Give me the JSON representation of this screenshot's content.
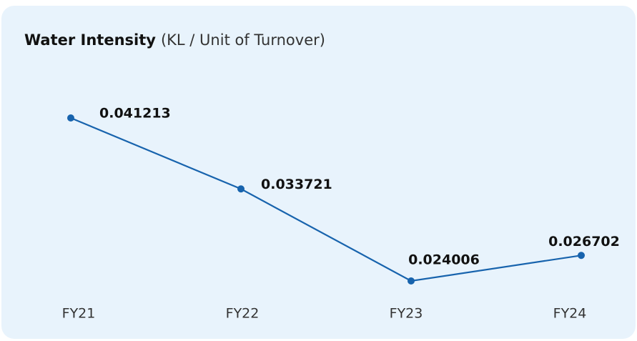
{
  "chart_data": {
    "type": "line",
    "title": "Water Intensity",
    "subtitle": "(KL / Unit of Turnover)",
    "categories": [
      "FY21",
      "FY22",
      "FY23",
      "FY24"
    ],
    "series": [
      {
        "name": null,
        "color": "#1763ad",
        "values": [
          0.041213,
          0.033721,
          0.024006,
          0.026702
        ]
      }
    ]
  }
}
